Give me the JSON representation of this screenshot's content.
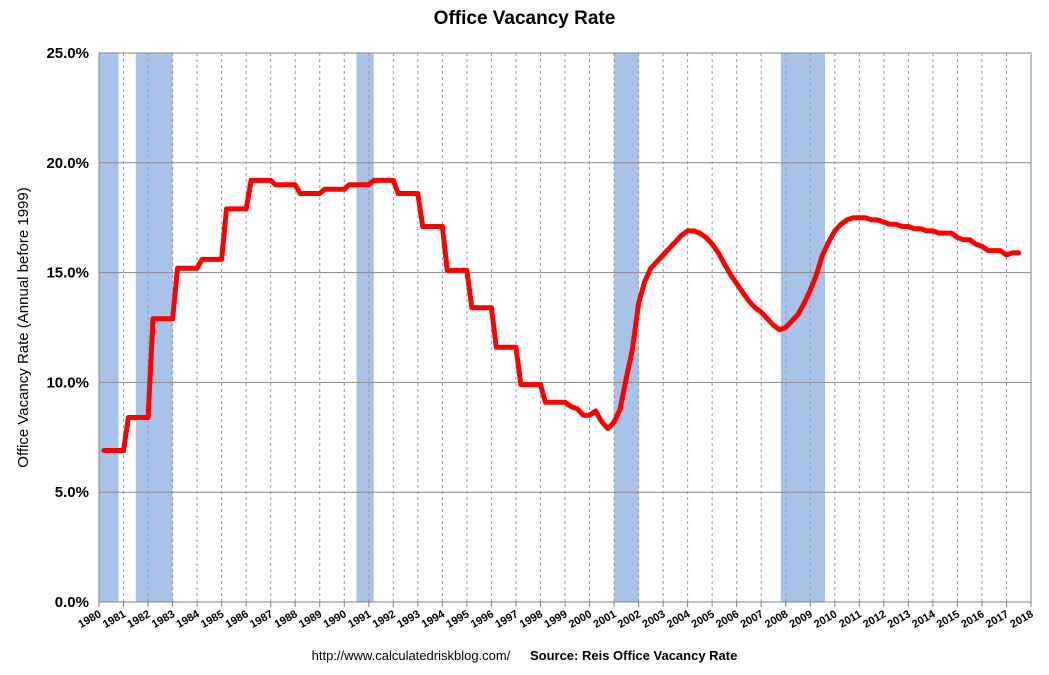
{
  "footer": {
    "url": "http://www.calculatedriskblog.com/",
    "source": "Source: Reis Office Vacancy Rate"
  },
  "chart_data": {
    "type": "line",
    "title": "Office Vacancy Rate",
    "xlabel": "",
    "ylabel": "Office Vacancy Rate (Annual before 1999)",
    "xlim": [
      1980,
      2018
    ],
    "ylim": [
      0,
      25
    ],
    "x_ticks": [
      "1980",
      "1981",
      "1982",
      "1983",
      "1984",
      "1985",
      "1986",
      "1987",
      "1988",
      "1989",
      "1990",
      "1991",
      "1992",
      "1993",
      "1994",
      "1995",
      "1996",
      "1997",
      "1998",
      "1999",
      "2000",
      "2001",
      "2002",
      "2003",
      "2004",
      "2005",
      "2006",
      "2007",
      "2008",
      "2009",
      "2010",
      "2011",
      "2012",
      "2013",
      "2014",
      "2015",
      "2016",
      "2017",
      "2018"
    ],
    "y_ticks": [
      "0.0%",
      "5.0%",
      "10.0%",
      "15.0%",
      "20.0%",
      "25.0%"
    ],
    "grid": true,
    "line_color": "#ff0000",
    "recession_color": "#a7c3e8",
    "recessions": [
      [
        1980.0,
        1980.8
      ],
      [
        1981.5,
        1983.0
      ],
      [
        1990.5,
        1991.2
      ],
      [
        2001.0,
        2002.0
      ],
      [
        2007.8,
        2009.6
      ]
    ],
    "series": [
      {
        "points": [
          [
            1980.2,
            6.9
          ],
          [
            1981.0,
            6.9
          ],
          [
            1981.2,
            8.4
          ],
          [
            1982.0,
            8.4
          ],
          [
            1982.2,
            12.9
          ],
          [
            1983.0,
            12.9
          ],
          [
            1983.2,
            15.2
          ],
          [
            1984.0,
            15.2
          ],
          [
            1984.2,
            15.6
          ],
          [
            1985.0,
            15.6
          ],
          [
            1985.2,
            17.9
          ],
          [
            1986.0,
            17.9
          ],
          [
            1986.2,
            19.2
          ],
          [
            1987.0,
            19.2
          ],
          [
            1987.2,
            19.0
          ],
          [
            1988.0,
            19.0
          ],
          [
            1988.2,
            18.6
          ],
          [
            1989.0,
            18.6
          ],
          [
            1989.2,
            18.8
          ],
          [
            1990.0,
            18.8
          ],
          [
            1990.2,
            19.0
          ],
          [
            1991.0,
            19.0
          ],
          [
            1991.2,
            19.2
          ],
          [
            1992.0,
            19.2
          ],
          [
            1992.2,
            18.6
          ],
          [
            1993.0,
            18.6
          ],
          [
            1993.2,
            17.1
          ],
          [
            1994.0,
            17.1
          ],
          [
            1994.2,
            15.1
          ],
          [
            1995.0,
            15.1
          ],
          [
            1995.2,
            13.4
          ],
          [
            1996.0,
            13.4
          ],
          [
            1996.2,
            11.6
          ],
          [
            1997.0,
            11.6
          ],
          [
            1997.2,
            9.9
          ],
          [
            1998.0,
            9.9
          ],
          [
            1998.2,
            9.1
          ],
          [
            1999.0,
            9.1
          ],
          [
            1999.25,
            8.9
          ],
          [
            1999.5,
            8.8
          ],
          [
            1999.75,
            8.5
          ],
          [
            2000.0,
            8.5
          ],
          [
            2000.25,
            8.7
          ],
          [
            2000.5,
            8.2
          ],
          [
            2000.75,
            7.9
          ],
          [
            2001.0,
            8.2
          ],
          [
            2001.25,
            8.8
          ],
          [
            2001.5,
            10.2
          ],
          [
            2001.75,
            11.5
          ],
          [
            2002.0,
            13.6
          ],
          [
            2002.25,
            14.6
          ],
          [
            2002.5,
            15.2
          ],
          [
            2002.75,
            15.5
          ],
          [
            2003.0,
            15.8
          ],
          [
            2003.25,
            16.1
          ],
          [
            2003.5,
            16.4
          ],
          [
            2003.75,
            16.7
          ],
          [
            2004.0,
            16.9
          ],
          [
            2004.25,
            16.9
          ],
          [
            2004.5,
            16.8
          ],
          [
            2004.75,
            16.6
          ],
          [
            2005.0,
            16.3
          ],
          [
            2005.25,
            15.9
          ],
          [
            2005.5,
            15.4
          ],
          [
            2005.75,
            14.9
          ],
          [
            2006.0,
            14.5
          ],
          [
            2006.25,
            14.1
          ],
          [
            2006.5,
            13.7
          ],
          [
            2006.75,
            13.4
          ],
          [
            2007.0,
            13.2
          ],
          [
            2007.25,
            12.9
          ],
          [
            2007.5,
            12.6
          ],
          [
            2007.75,
            12.4
          ],
          [
            2008.0,
            12.5
          ],
          [
            2008.25,
            12.8
          ],
          [
            2008.5,
            13.1
          ],
          [
            2008.75,
            13.6
          ],
          [
            2009.0,
            14.2
          ],
          [
            2009.25,
            14.9
          ],
          [
            2009.5,
            15.8
          ],
          [
            2009.75,
            16.4
          ],
          [
            2010.0,
            16.9
          ],
          [
            2010.25,
            17.2
          ],
          [
            2010.5,
            17.4
          ],
          [
            2010.75,
            17.5
          ],
          [
            2011.0,
            17.5
          ],
          [
            2011.25,
            17.5
          ],
          [
            2011.5,
            17.4
          ],
          [
            2011.75,
            17.4
          ],
          [
            2012.0,
            17.3
          ],
          [
            2012.25,
            17.2
          ],
          [
            2012.5,
            17.2
          ],
          [
            2012.75,
            17.1
          ],
          [
            2013.0,
            17.1
          ],
          [
            2013.25,
            17.0
          ],
          [
            2013.5,
            17.0
          ],
          [
            2013.75,
            16.9
          ],
          [
            2014.0,
            16.9
          ],
          [
            2014.25,
            16.8
          ],
          [
            2014.5,
            16.8
          ],
          [
            2014.75,
            16.8
          ],
          [
            2015.0,
            16.6
          ],
          [
            2015.25,
            16.5
          ],
          [
            2015.5,
            16.5
          ],
          [
            2015.75,
            16.3
          ],
          [
            2016.0,
            16.2
          ],
          [
            2016.25,
            16.0
          ],
          [
            2016.5,
            16.0
          ],
          [
            2016.75,
            16.0
          ],
          [
            2017.0,
            15.8
          ],
          [
            2017.25,
            15.9
          ],
          [
            2017.5,
            15.9
          ]
        ]
      }
    ]
  }
}
